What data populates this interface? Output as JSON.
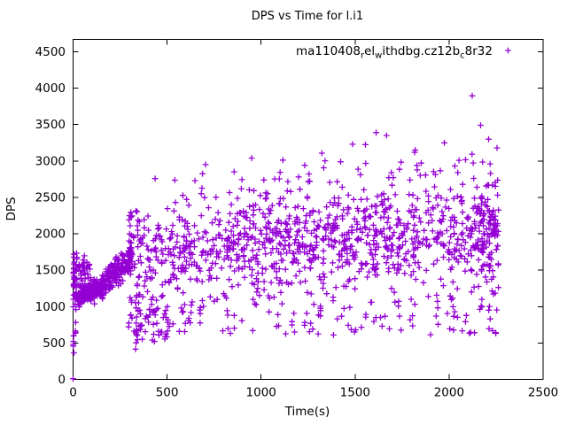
{
  "window": {
    "background": "#ffffff",
    "foreground": "#000000"
  },
  "chart_data": {
    "type": "scatter",
    "title": "DPS vs Time for l.i1",
    "xlabel": "Time(s)",
    "ylabel": "DPS",
    "xlim": [
      0,
      2500
    ],
    "ylim": [
      0,
      4670
    ],
    "xticks": [
      0,
      500,
      1000,
      1500,
      2000,
      2500
    ],
    "yticks": [
      0,
      500,
      1000,
      1500,
      2000,
      2500,
      3000,
      3500,
      4000,
      4500
    ],
    "grid": false,
    "legend": {
      "position": "top-right-inside",
      "series_label_raw": "ma110408_rel_withdbg.cz12b_c8r32",
      "segments": [
        {
          "text": "ma110408",
          "sub": false
        },
        {
          "text": "r",
          "sub": true
        },
        {
          "text": "el",
          "sub": false
        },
        {
          "text": "w",
          "sub": true
        },
        {
          "text": "ithdbg.cz12b",
          "sub": false
        },
        {
          "text": "c",
          "sub": true
        },
        {
          "text": "8r32",
          "sub": false
        }
      ]
    },
    "series": [
      {
        "name": "ma110408_rel_withdbg.cz12b_c8r32",
        "marker": "plus",
        "color": "#9400d3",
        "points_generator": {
          "seed": 77003,
          "note": "Statistical approximation of ~1800 plotted samples; each phase gives time range (s), point count, and DPS distribution as read from the screenshot.",
          "phases": [
            {
              "id": "t0-high-column",
              "t": [
                1,
                22
              ],
              "n": 30,
              "dist": "normal",
              "mean": [
                1450,
                1500
              ],
              "sd": 120,
              "clip": [
                1150,
                1750
              ]
            },
            {
              "id": "t0-mid",
              "t": [
                1,
                18
              ],
              "n": 12,
              "dist": "normal",
              "mean": [
                1120,
                1160
              ],
              "sd": 110,
              "clip": [
                900,
                1330
              ]
            },
            {
              "id": "t0-low-tail",
              "t": [
                0,
                14
              ],
              "n": 7,
              "dist": "uniform",
              "range": [
                330,
                820
              ]
            },
            {
              "id": "warm-band",
              "t": [
                25,
                160
              ],
              "n": 210,
              "dist": "normal",
              "mean": [
                1140,
                1280
              ],
              "sd": 75,
              "clip": [
                930,
                1500
              ]
            },
            {
              "id": "warm-high",
              "t": [
                25,
                90
              ],
              "n": 30,
              "dist": "normal",
              "mean": [
                1530,
                1545
              ],
              "sd": 75,
              "clip": [
                1370,
                1730
              ]
            },
            {
              "id": "rise-band",
              "t": [
                160,
                315
              ],
              "n": 160,
              "dist": "normal",
              "mean": [
                1310,
                1700
              ],
              "sd": 95,
              "clip": [
                1020,
                2050
              ]
            },
            {
              "id": "fan-out",
              "t": [
                295,
                365
              ],
              "n": 60,
              "dist": "uniform",
              "range": [
                480,
                2330
              ]
            },
            {
              "id": "early-low-shelf",
              "t": [
                330,
                600
              ],
              "n": 45,
              "dist": "uniform",
              "range": [
                520,
                1000
              ]
            },
            {
              "id": "main-cloud",
              "t": [
                360,
                2265
              ],
              "n": 1000,
              "dist": "normal",
              "mean": [
                1730,
                2060
              ],
              "sd": 340,
              "clip": [
                560,
                3080
              ]
            },
            {
              "id": "main-low-tail",
              "t": [
                400,
                2265
              ],
              "n": 110,
              "dist": "uniform",
              "range": [
                600,
                1150
              ]
            },
            {
              "id": "main-upper-band",
              "t": [
                520,
                2265
              ],
              "n": 55,
              "dist": "normal",
              "mean": [
                2650,
                2880
              ],
              "sd": 170,
              "clip": [
                2350,
                3200
              ]
            },
            {
              "id": "right-edge-dense",
              "t": [
                2140,
                2265
              ],
              "n": 70,
              "dist": "normal",
              "mean": [
                2000,
                2000
              ],
              "sd": 480,
              "clip": [
                880,
                3060
              ]
            }
          ]
        },
        "notable_points": [
          [
            0,
            10
          ],
          [
            1,
            480
          ],
          [
            2,
            520
          ],
          [
            332,
            415
          ],
          [
            705,
            2950
          ],
          [
            950,
            3040
          ],
          [
            1487,
            3230
          ],
          [
            1555,
            3225
          ],
          [
            1612,
            3390
          ],
          [
            1667,
            3350
          ],
          [
            1820,
            3150
          ],
          [
            1975,
            3250
          ],
          [
            2123,
            3895
          ],
          [
            2168,
            3490
          ],
          [
            2210,
            3300
          ],
          [
            2255,
            3180
          ]
        ]
      }
    ]
  }
}
